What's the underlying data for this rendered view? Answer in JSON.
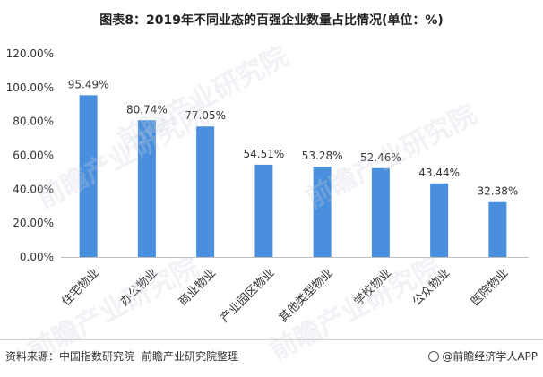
{
  "title": "图表8：2019年不同业态的百强企业数量占比情况(单位：%)",
  "chart_data": {
    "type": "bar",
    "title": "图表8：2019年不同业态的百强企业数量占比情况(单位：%)",
    "categories": [
      "住宅物业",
      "办公物业",
      "商业物业",
      "产业园区物业",
      "其他类型物业",
      "学校物业",
      "公众物业",
      "医院物业"
    ],
    "values": [
      95.49,
      80.74,
      77.05,
      54.51,
      53.28,
      52.46,
      43.44,
      32.38
    ],
    "value_labels": [
      "95.49%",
      "80.74%",
      "77.05%",
      "54.51%",
      "53.28%",
      "52.46%",
      "43.44%",
      "32.38%"
    ],
    "ylim": [
      0,
      120
    ],
    "y_ticks": [
      0,
      20,
      40,
      60,
      80,
      100,
      120
    ],
    "y_tick_labels": [
      "0.00%",
      "20.00%",
      "40.00%",
      "60.00%",
      "80.00%",
      "100.00%",
      "120.00%"
    ],
    "bar_color": "#4a8fdd",
    "grid": false,
    "xlabel": "",
    "ylabel": ""
  },
  "footer": {
    "source_label": "资料来源：中国指数研究院",
    "source_org": "前瞻产业研究院整理",
    "brand": "@前瞻经济学人APP"
  },
  "watermark_text": "前瞻产业研究院"
}
